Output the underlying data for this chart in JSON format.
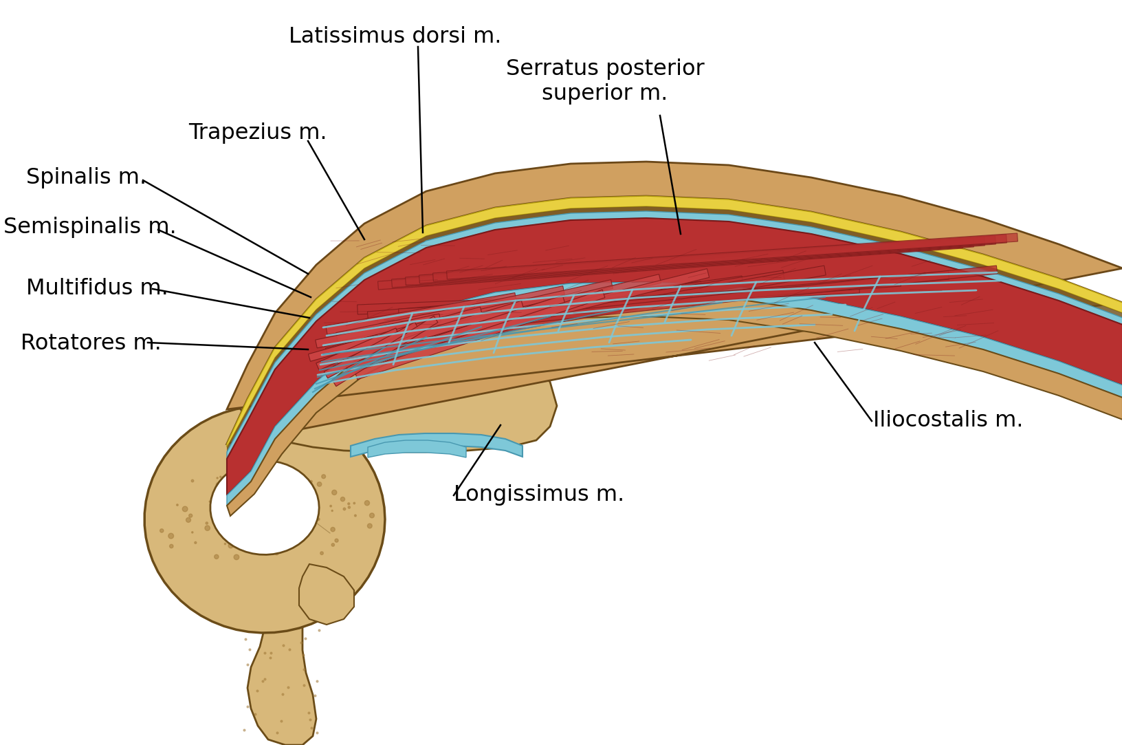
{
  "bg_color": "#ffffff",
  "labels": {
    "latissimus_dorsi": "Latissimus dorsi m.",
    "trapezius": "Trapezius m.",
    "serratus_posterior_superior": "Serratus posterior\nsuperior m.",
    "spinalis": "Spinalis m.",
    "semispinalis": "Semispinalis m.",
    "multifidus": "Multifidus m.",
    "rotatores": "Rotatores m.",
    "iliocostalis": "Iliocostalis m.",
    "longissimus": "Longissimus m."
  },
  "colors": {
    "bone": "#D8B87A",
    "bone_mid": "#C8A060",
    "bone_dark": "#A07838",
    "bone_outline": "#6B4C18",
    "bone_spot": "#8B6520",
    "muscle_red": "#B83030",
    "muscle_light": "#CC4444",
    "muscle_dark": "#7A1A1A",
    "fascia_blue": "#7EC8D8",
    "fascia_dark": "#4898B0",
    "fat_yellow": "#E8D040",
    "fat_outline": "#B8A010",
    "skin_tan": "#D0A060",
    "skin_outline": "#6B4818",
    "skin_light": "#E0C080",
    "red_layer": "#C03030",
    "line_color": "#000000",
    "text_color": "#000000"
  },
  "figsize": [
    16.33,
    10.83
  ],
  "dpi": 100
}
